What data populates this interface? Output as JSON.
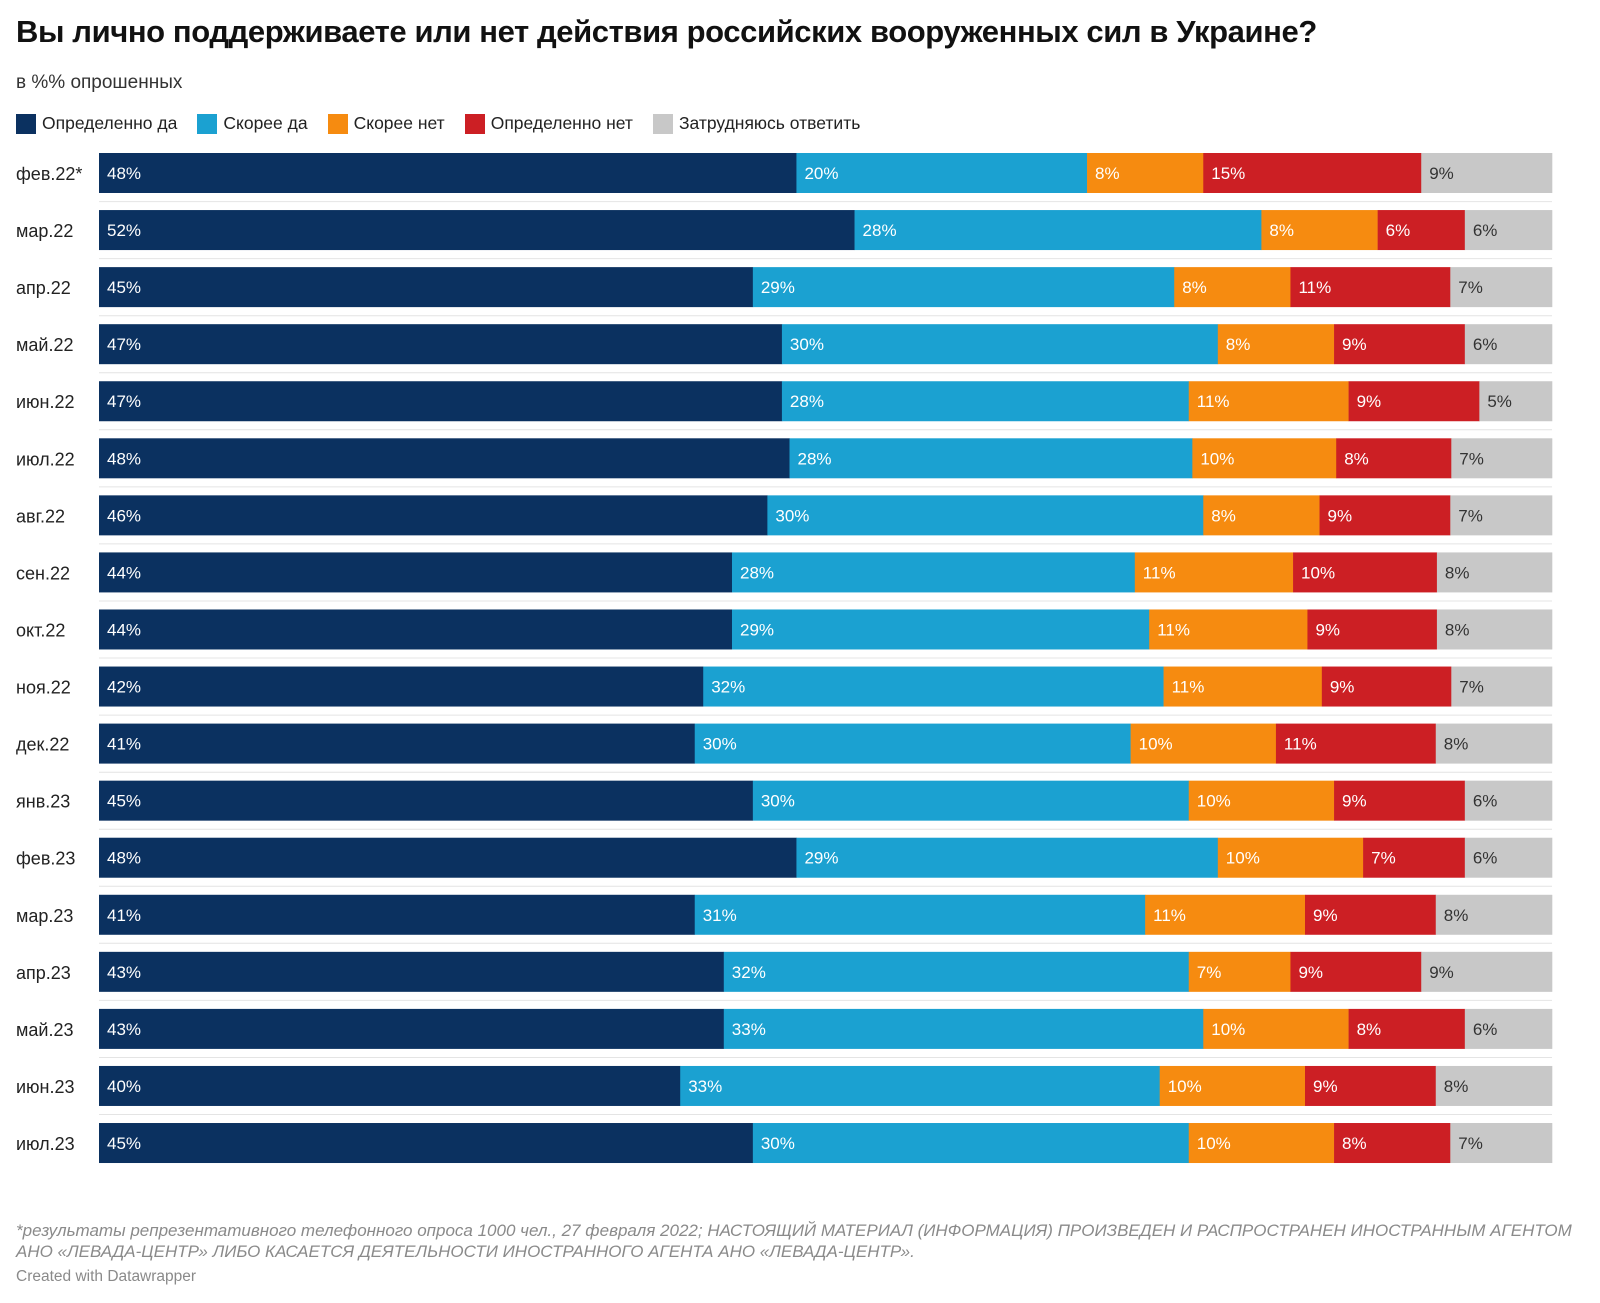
{
  "title": "Вы лично поддерживаете или нет действия российских вооруженных сил в Украине?",
  "subtitle": "в %% опрошенных",
  "footnote": "*результаты репрезентативного телефонного опроса 1000 чел., 27 февраля 2022; НАСТОЯЩИЙ МАТЕРИАЛ (ИНФОРМАЦИЯ) ПРОИЗВЕДЕН И РАСПРОСТРАНЕН ИНОСТРАННЫМ АГЕНТОМ АНО «ЛЕВАДА-ЦЕНТР» ЛИБО КАСАЕТСЯ ДЕЯТЕЛЬНОСТИ ИНОСТРАННОГО АГЕНТА АНО «ЛЕВАДА-ЦЕНТР».",
  "credit": "Created with Datawrapper",
  "chart_data": {
    "type": "bar",
    "orientation": "horizontal",
    "stacked": true,
    "value_suffix": "%",
    "categories": [
      "фев.22*",
      "мар.22",
      "апр.22",
      "май.22",
      "июн.22",
      "июл.22",
      "авг.22",
      "сен.22",
      "окт.22",
      "ноя.22",
      "дек.22",
      "янв.23",
      "фев.23",
      "мар.23",
      "апр.23",
      "май.23",
      "июн.23",
      "июл.23"
    ],
    "series": [
      {
        "name": "Определенно да",
        "color": "#0b3160",
        "label_color": "#ffffff",
        "values": [
          48,
          52,
          45,
          47,
          47,
          48,
          46,
          44,
          44,
          42,
          41,
          45,
          48,
          41,
          43,
          43,
          40,
          45
        ]
      },
      {
        "name": "Скорее да",
        "color": "#1ba1d1",
        "label_color": "#ffffff",
        "values": [
          20,
          28,
          29,
          30,
          28,
          28,
          30,
          28,
          29,
          32,
          30,
          30,
          29,
          31,
          32,
          33,
          33,
          30
        ]
      },
      {
        "name": "Скорее нет",
        "color": "#f68b10",
        "label_color": "#ffffff",
        "values": [
          8,
          8,
          8,
          8,
          11,
          10,
          8,
          11,
          11,
          11,
          10,
          10,
          10,
          11,
          7,
          10,
          10,
          10
        ]
      },
      {
        "name": "Определенно нет",
        "color": "#cc1f24",
        "label_color": "#ffffff",
        "values": [
          15,
          6,
          11,
          9,
          9,
          8,
          9,
          10,
          9,
          9,
          11,
          9,
          7,
          9,
          9,
          8,
          9,
          8
        ]
      },
      {
        "name": "Затрудняюсь ответить",
        "color": "#c8c8c8",
        "label_color": "#333333",
        "values": [
          9,
          6,
          7,
          6,
          5,
          7,
          7,
          8,
          8,
          7,
          8,
          6,
          6,
          8,
          9,
          6,
          8,
          7
        ]
      }
    ]
  }
}
